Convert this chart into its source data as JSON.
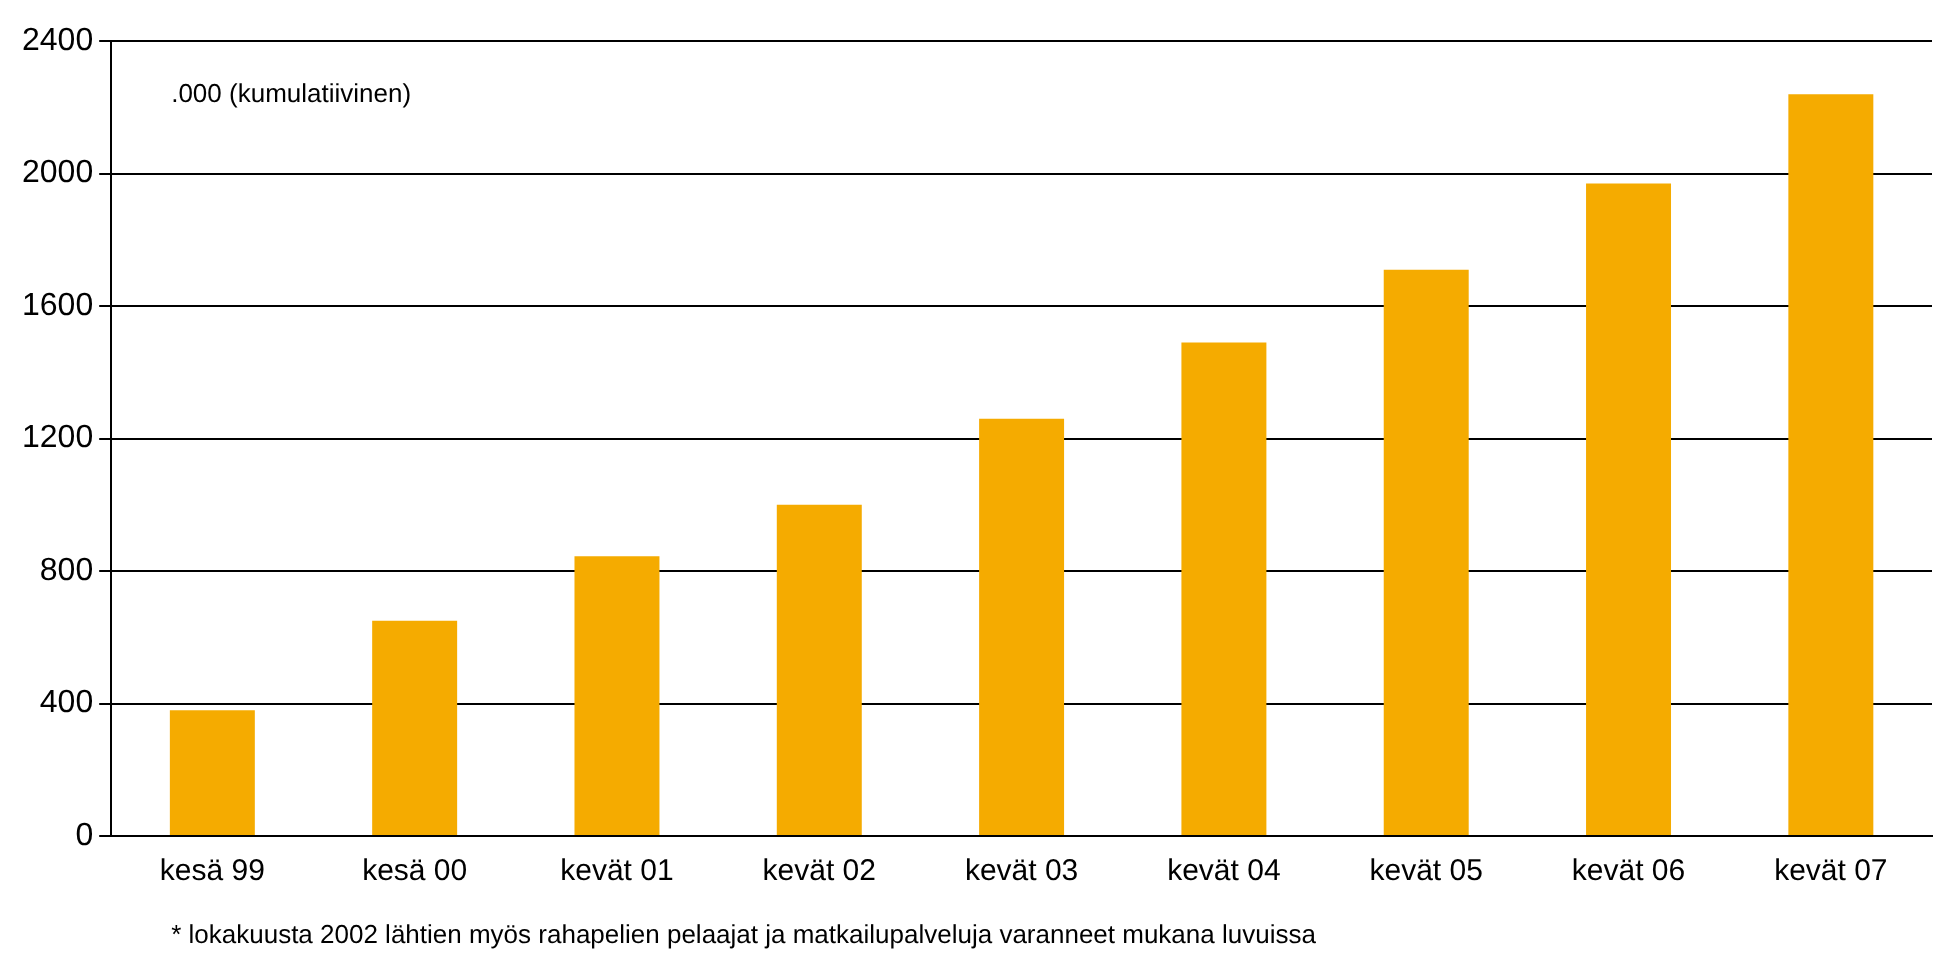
{
  "chart_data": {
    "type": "bar",
    "ylabel": ".000 (kumulatiivinen)",
    "categories": [
      "kesä 99",
      "kesä 00",
      "kevät 01",
      "kevät 02",
      "kevät 03",
      "kevät 04",
      "kevät 05",
      "kevät 06",
      "kevät 07"
    ],
    "values": [
      380,
      650,
      845,
      1000,
      1260,
      1490,
      1710,
      1970,
      2240
    ],
    "color": "#f5ab00",
    "ylim": [
      0,
      2400
    ],
    "yticks": [
      0,
      400,
      800,
      1200,
      1600,
      2000,
      2400
    ],
    "grid": "y",
    "annotations": [
      "* lokakuusta 2002 lähtien myös rahapelien pelaajat ja matkailupalveluja varanneet mukana luvuissa"
    ]
  }
}
